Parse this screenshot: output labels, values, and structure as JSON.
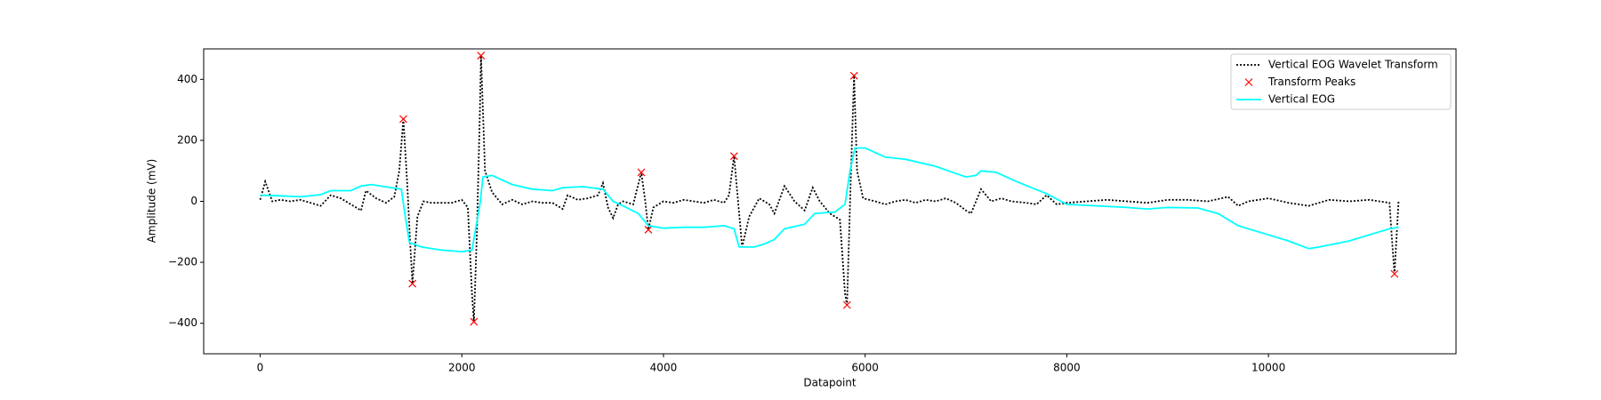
{
  "chart_data": {
    "type": "line",
    "xlabel": "Datapoint",
    "ylabel": "Amplitude (mV)",
    "xlim": [
      -560,
      11860
    ],
    "ylim": [
      -500,
      500
    ],
    "xticks": [
      0,
      2000,
      4000,
      6000,
      8000,
      10000
    ],
    "yticks": [
      {
        "value": -400,
        "label": "−400"
      },
      {
        "value": -200,
        "label": "−200"
      },
      0,
      200,
      400
    ],
    "legend": "upper right",
    "series": [
      {
        "name": "Vertical EOG Wavelet Transform",
        "color": "#000000",
        "style": "dotted",
        "x": [
          0,
          50,
          120,
          200,
          300,
          400,
          500,
          600,
          700,
          800,
          900,
          1000,
          1050,
          1150,
          1250,
          1330,
          1380,
          1420,
          1460,
          1490,
          1510,
          1560,
          1620,
          1700,
          1800,
          1900,
          2000,
          2060,
          2100,
          2120,
          2150,
          2180,
          2190,
          2230,
          2300,
          2400,
          2500,
          2600,
          2700,
          2800,
          2900,
          3000,
          3050,
          3150,
          3250,
          3350,
          3400,
          3450,
          3500,
          3550,
          3600,
          3700,
          3780,
          3820,
          3850,
          3900,
          4000,
          4100,
          4200,
          4300,
          4400,
          4500,
          4600,
          4650,
          4700,
          4740,
          4780,
          4850,
          4950,
          5050,
          5100,
          5200,
          5300,
          5400,
          5480,
          5550,
          5650,
          5750,
          5800,
          5820,
          5860,
          5890,
          5920,
          5980,
          6100,
          6200,
          6300,
          6400,
          6500,
          6600,
          6700,
          6800,
          6900,
          7000,
          7050,
          7150,
          7250,
          7350,
          7450,
          7600,
          7700,
          7800,
          7900,
          8000,
          8200,
          8400,
          8600,
          8800,
          9000,
          9200,
          9400,
          9600,
          9700,
          9800,
          10000,
          10200,
          10400,
          10600,
          10800,
          11000,
          11200,
          11230,
          11250,
          11290
        ],
        "values": [
          5,
          65,
          0,
          5,
          0,
          5,
          -5,
          -15,
          20,
          10,
          -10,
          -30,
          35,
          10,
          -5,
          15,
          100,
          270,
          50,
          -150,
          -270,
          -50,
          0,
          -5,
          -5,
          -5,
          5,
          -20,
          -300,
          -395,
          -100,
          300,
          478,
          100,
          30,
          -10,
          5,
          -10,
          0,
          -5,
          -5,
          -25,
          20,
          5,
          10,
          20,
          60,
          -20,
          -55,
          -10,
          0,
          -10,
          95,
          0,
          -93,
          -20,
          0,
          -5,
          5,
          0,
          -5,
          5,
          -5,
          20,
          148,
          0,
          -150,
          -50,
          10,
          -10,
          -40,
          50,
          0,
          -30,
          45,
          0,
          -40,
          -60,
          -300,
          -340,
          100,
          412,
          100,
          10,
          0,
          -10,
          0,
          5,
          -5,
          5,
          0,
          10,
          -5,
          -30,
          -40,
          40,
          0,
          10,
          0,
          -5,
          -10,
          20,
          -10,
          -5,
          0,
          5,
          0,
          -5,
          5,
          5,
          0,
          15,
          -15,
          0,
          10,
          -5,
          -15,
          5,
          0,
          5,
          -5,
          -150,
          -238,
          0
        ]
      },
      {
        "name": "Transform Peaks",
        "color": "#ff0000",
        "marker": "x",
        "x": [
          1420,
          1510,
          2120,
          2190,
          3780,
          3850,
          4700,
          5820,
          5890,
          11250
        ],
        "values": [
          270,
          -270,
          -395,
          478,
          95,
          -93,
          148,
          -340,
          412,
          -238
        ]
      },
      {
        "name": "Vertical EOG",
        "color": "#00ffff",
        "style": "solid",
        "x": [
          0,
          200,
          400,
          600,
          700,
          900,
          1000,
          1100,
          1300,
          1400,
          1440,
          1480,
          1600,
          1800,
          2000,
          2100,
          2180,
          2210,
          2300,
          2500,
          2700,
          2900,
          3000,
          3200,
          3400,
          3500,
          3600,
          3750,
          3850,
          4000,
          4200,
          4400,
          4600,
          4700,
          4750,
          4900,
          5000,
          5100,
          5200,
          5400,
          5500,
          5700,
          5800,
          5850,
          5900,
          6000,
          6200,
          6400,
          6700,
          7000,
          7100,
          7150,
          7300,
          7500,
          7800,
          8000,
          8300,
          8600,
          8800,
          9000,
          9300,
          9500,
          9700,
          10000,
          10200,
          10400,
          10500,
          10800,
          11000,
          11200,
          11290
        ],
        "values": [
          20,
          18,
          15,
          22,
          35,
          35,
          50,
          55,
          45,
          40,
          -50,
          -135,
          -150,
          -160,
          -165,
          -160,
          -10,
          80,
          85,
          55,
          40,
          35,
          45,
          48,
          40,
          0,
          -15,
          -40,
          -80,
          -88,
          -85,
          -85,
          -80,
          -90,
          -150,
          -150,
          -140,
          -125,
          -90,
          -75,
          -40,
          -35,
          -10,
          100,
          175,
          175,
          145,
          138,
          115,
          80,
          85,
          100,
          95,
          65,
          25,
          -10,
          -15,
          -20,
          -25,
          -20,
          -22,
          -40,
          -80,
          -110,
          -130,
          -155,
          -150,
          -130,
          -110,
          -90,
          -85
        ]
      }
    ]
  }
}
